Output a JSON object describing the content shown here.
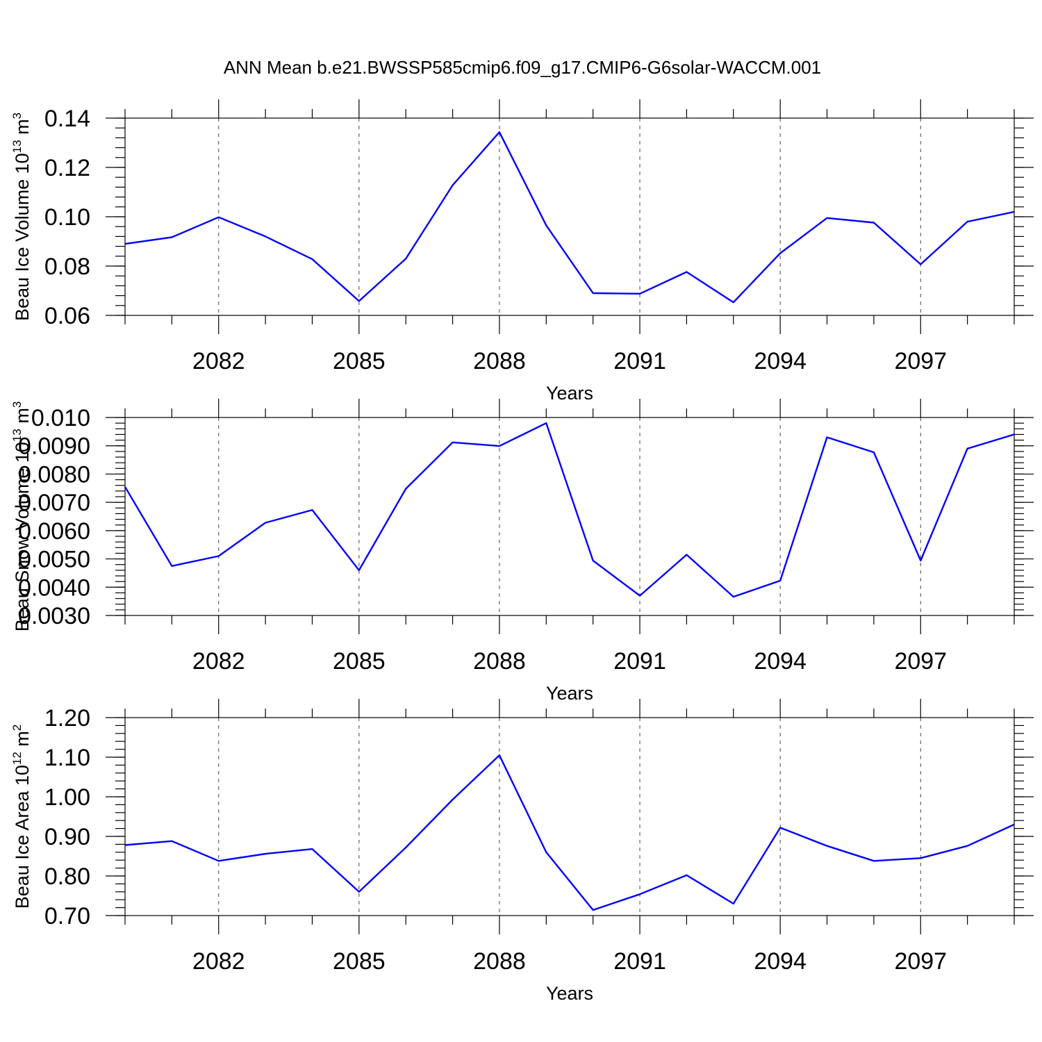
{
  "figure": {
    "title": "ANN Mean b.e21.BWSSP585cmip6.f09_g17.CMIP6-G6solar-WACCM.001"
  },
  "colors": {
    "series": "#0000ff",
    "axes": "#000000",
    "grid": "#444444"
  },
  "chart_data": [
    {
      "type": "line",
      "title": "ANN Mean b.e21.BWSSP585cmip6.f09_g17.CMIP6-G6solar-WACCM.001",
      "xlabel": "Years",
      "ylabel": "Beau Ice Volume 10",
      "ylabel_exp": "13",
      "ylabel_unit": " m",
      "ylabel_unit_exp": "3",
      "xlim": [
        2080,
        2099
      ],
      "ylim": [
        0.06,
        0.14
      ],
      "xticks": [
        2082,
        2085,
        2088,
        2091,
        2094,
        2097
      ],
      "xtick_labels": [
        "2082",
        "2085",
        "2088",
        "2091",
        "2094",
        "2097"
      ],
      "yticks": [
        0.06,
        0.08,
        0.1,
        0.12,
        0.14
      ],
      "ytick_labels": [
        "0.06",
        "0.08",
        "0.10",
        "0.12",
        "0.14"
      ],
      "y_minor_step": 0.004,
      "grid": "x-dashed",
      "x": [
        2080,
        2081,
        2082,
        2083,
        2084,
        2085,
        2086,
        2087,
        2088,
        2089,
        2090,
        2091,
        2092,
        2093,
        2094,
        2095,
        2096,
        2097,
        2098,
        2099
      ],
      "values": [
        0.089,
        0.0917,
        0.0998,
        0.092,
        0.0828,
        0.0658,
        0.083,
        0.1128,
        0.1343,
        0.0965,
        0.069,
        0.0688,
        0.0776,
        0.0653,
        0.0852,
        0.0995,
        0.0976,
        0.0807,
        0.098,
        0.102
      ]
    },
    {
      "type": "line",
      "xlabel": "Years",
      "ylabel": "Beau Snow Volume 10",
      "ylabel_exp": "13",
      "ylabel_unit": " m",
      "ylabel_unit_exp": "3",
      "xlim": [
        2080,
        2099
      ],
      "ylim": [
        0.003,
        0.01
      ],
      "xticks": [
        2082,
        2085,
        2088,
        2091,
        2094,
        2097
      ],
      "xtick_labels": [
        "2082",
        "2085",
        "2088",
        "2091",
        "2094",
        "2097"
      ],
      "yticks": [
        0.003,
        0.004,
        0.005,
        0.006,
        0.007,
        0.008,
        0.009,
        0.01
      ],
      "ytick_labels": [
        "0.0030",
        "0.0040",
        "0.0050",
        "0.0060",
        "0.0070",
        "0.0080",
        "0.0090",
        "0.010"
      ],
      "y_minor_step": 0.0002,
      "grid": "x-dashed",
      "x": [
        2080,
        2081,
        2082,
        2083,
        2084,
        2085,
        2086,
        2087,
        2088,
        2089,
        2090,
        2091,
        2092,
        2093,
        2094,
        2095,
        2096,
        2097,
        2098,
        2099
      ],
      "values": [
        0.00755,
        0.00475,
        0.0051,
        0.00628,
        0.00673,
        0.0046,
        0.00748,
        0.00912,
        0.00899,
        0.0098,
        0.00494,
        0.0037,
        0.00515,
        0.00366,
        0.00423,
        0.0093,
        0.00877,
        0.00494,
        0.0089,
        0.0094
      ]
    },
    {
      "type": "line",
      "xlabel": "Years",
      "ylabel": "Beau Ice Area 10",
      "ylabel_exp": "12",
      "ylabel_unit": " m",
      "ylabel_unit_exp": "2",
      "xlim": [
        2080,
        2099
      ],
      "ylim": [
        0.7,
        1.2
      ],
      "xticks": [
        2082,
        2085,
        2088,
        2091,
        2094,
        2097
      ],
      "xtick_labels": [
        "2082",
        "2085",
        "2088",
        "2091",
        "2094",
        "2097"
      ],
      "yticks": [
        0.7,
        0.8,
        0.9,
        1.0,
        1.1,
        1.2
      ],
      "ytick_labels": [
        "0.70",
        "0.80",
        "0.90",
        "1.00",
        "1.10",
        "1.20"
      ],
      "y_minor_step": 0.02,
      "grid": "x-dashed",
      "x": [
        2080,
        2081,
        2082,
        2083,
        2084,
        2085,
        2086,
        2087,
        2088,
        2089,
        2090,
        2091,
        2092,
        2093,
        2094,
        2095,
        2096,
        2097,
        2098,
        2099
      ],
      "values": [
        0.878,
        0.888,
        0.838,
        0.856,
        0.868,
        0.76,
        0.872,
        0.993,
        1.105,
        0.86,
        0.714,
        0.754,
        0.802,
        0.73,
        0.922,
        0.876,
        0.838,
        0.845,
        0.876,
        0.93
      ]
    }
  ]
}
